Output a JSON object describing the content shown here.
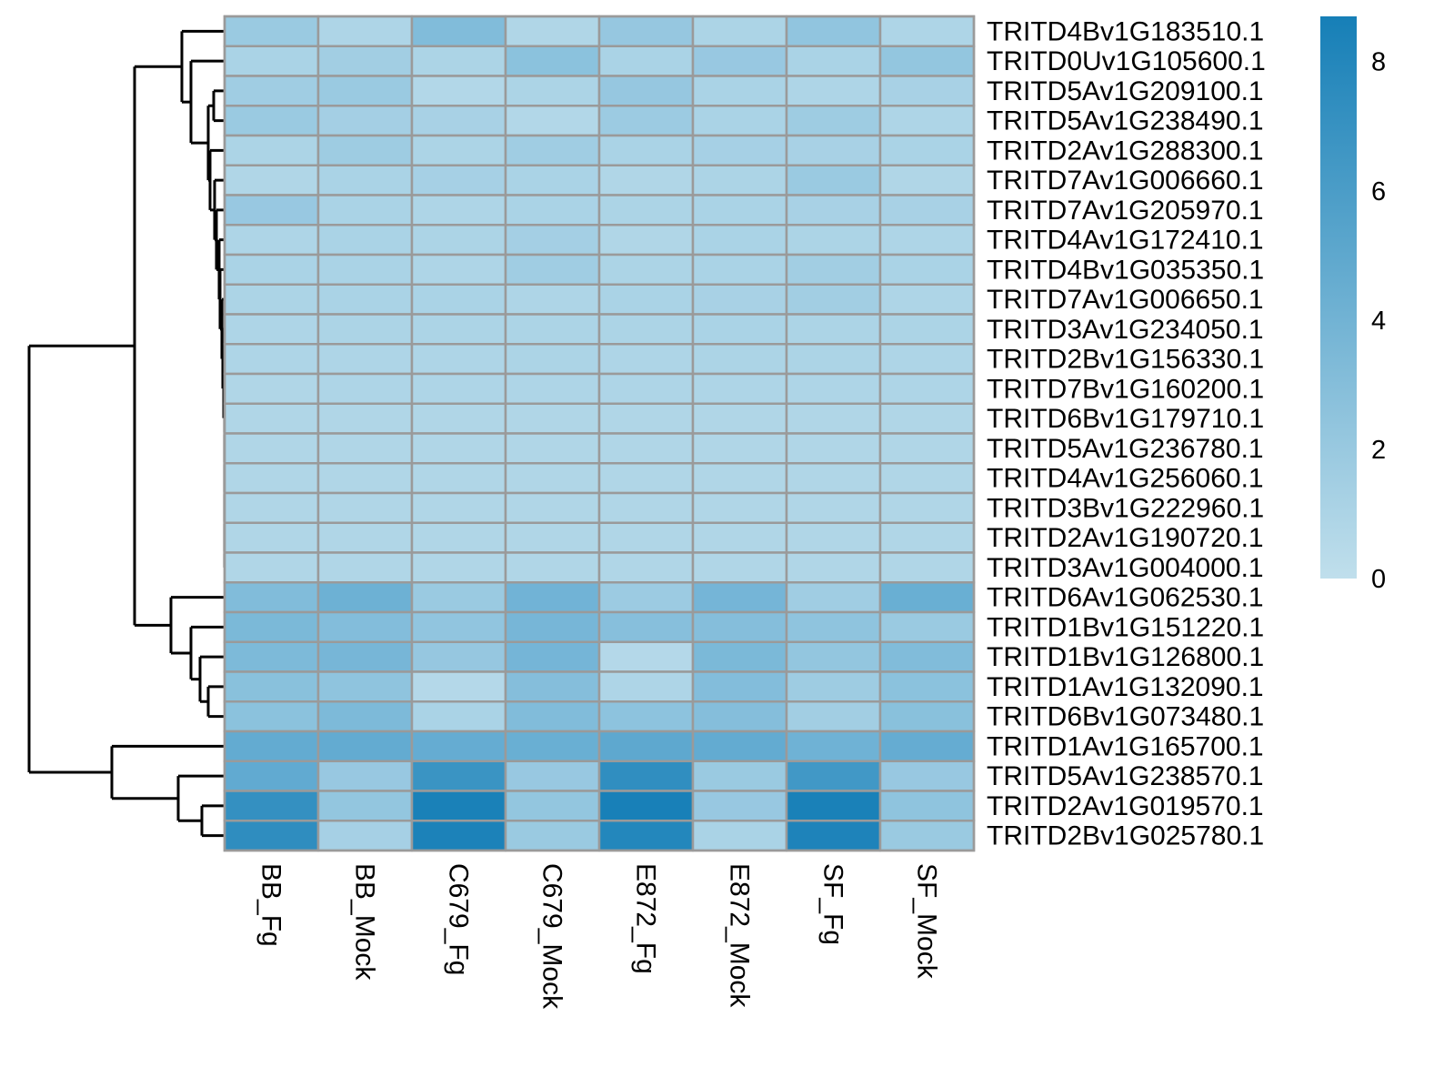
{
  "chart_data": {
    "type": "heatmap",
    "title": "",
    "xlabel": "",
    "ylabel": "",
    "columns": [
      "BB_Fg",
      "BB_Mock",
      "C679_Fg",
      "C679_Mock",
      "E872_Fg",
      "E872_Mock",
      "SF_Fg",
      "SF_Mock"
    ],
    "rows": [
      "TRITD4Bv1G183510.1",
      "TRITD0Uv1G105600.1",
      "TRITD5Av1G209100.1",
      "TRITD5Av1G238490.1",
      "TRITD2Av1G288300.1",
      "TRITD7Av1G006660.1",
      "TRITD7Av1G205970.1",
      "TRITD4Av1G172410.1",
      "TRITD4Bv1G035350.1",
      "TRITD7Av1G006650.1",
      "TRITD3Av1G234050.1",
      "TRITD2Bv1G156330.1",
      "TRITD7Bv1G160200.1",
      "TRITD6Bv1G179710.1",
      "TRITD5Av1G236780.1",
      "TRITD4Av1G256060.1",
      "TRITD3Bv1G222960.1",
      "TRITD2Av1G190720.1",
      "TRITD3Av1G004000.1",
      "TRITD6Av1G062530.1",
      "TRITD1Bv1G151220.1",
      "TRITD1Bv1G126800.1",
      "TRITD1Av1G132090.1",
      "TRITD6Bv1G073480.1",
      "TRITD1Av1G165700.1",
      "TRITD5Av1G238570.1",
      "TRITD2Av1G019570.1",
      "TRITD2Bv1G025780.1"
    ],
    "values": [
      [
        1.9,
        0.9,
        3.1,
        0.8,
        2.1,
        1.0,
        2.3,
        0.9
      ],
      [
        1.1,
        1.5,
        1.0,
        2.6,
        1.1,
        2.0,
        1.1,
        2.2
      ],
      [
        1.6,
        1.9,
        0.7,
        1.0,
        2.1,
        1.1,
        0.9,
        1.2
      ],
      [
        1.9,
        1.4,
        1.2,
        0.7,
        1.8,
        1.1,
        1.7,
        0.9
      ],
      [
        1.0,
        1.7,
        1.0,
        1.6,
        1.1,
        1.3,
        1.2,
        1.1
      ],
      [
        0.8,
        1.1,
        1.3,
        1.1,
        0.8,
        1.0,
        1.9,
        0.8
      ],
      [
        2.0,
        1.1,
        0.9,
        1.1,
        1.0,
        1.1,
        1.2,
        1.2
      ],
      [
        0.9,
        1.1,
        1.0,
        1.4,
        0.8,
        1.1,
        1.0,
        0.9
      ],
      [
        1.1,
        1.1,
        0.9,
        1.6,
        1.0,
        1.1,
        1.5,
        1.1
      ],
      [
        1.0,
        1.1,
        1.1,
        0.9,
        1.1,
        1.2,
        1.5,
        0.9
      ],
      [
        0.9,
        1.0,
        1.0,
        1.0,
        1.0,
        1.1,
        1.0,
        1.0
      ],
      [
        0.9,
        0.9,
        0.9,
        1.0,
        0.9,
        1.0,
        1.0,
        0.9
      ],
      [
        0.8,
        0.9,
        0.9,
        0.9,
        0.9,
        0.9,
        0.9,
        0.9
      ],
      [
        0.8,
        0.8,
        0.8,
        0.8,
        0.8,
        0.8,
        0.8,
        0.8
      ],
      [
        0.8,
        0.8,
        0.8,
        0.8,
        0.8,
        0.8,
        0.8,
        0.8
      ],
      [
        0.8,
        0.8,
        0.8,
        0.8,
        0.8,
        0.8,
        0.8,
        0.8
      ],
      [
        0.8,
        0.8,
        0.8,
        0.8,
        0.8,
        0.8,
        0.8,
        0.8
      ],
      [
        0.8,
        0.8,
        0.8,
        0.8,
        0.8,
        0.8,
        0.8,
        0.8
      ],
      [
        0.8,
        0.8,
        0.8,
        0.8,
        0.8,
        0.8,
        0.8,
        0.8
      ],
      [
        3.1,
        4.1,
        1.9,
        3.9,
        1.8,
        3.7,
        1.6,
        4.3
      ],
      [
        3.4,
        3.0,
        2.3,
        3.6,
        2.8,
        2.9,
        2.4,
        1.9
      ],
      [
        3.3,
        3.6,
        2.1,
        3.7,
        0.6,
        3.4,
        2.2,
        3.1
      ],
      [
        2.7,
        2.4,
        0.6,
        2.9,
        0.9,
        3.0,
        1.7,
        2.6
      ],
      [
        2.6,
        3.3,
        1.1,
        3.1,
        2.5,
        2.9,
        1.5,
        2.7
      ],
      [
        4.6,
        4.6,
        4.5,
        4.3,
        4.9,
        4.6,
        4.0,
        4.5
      ],
      [
        4.7,
        2.0,
        6.8,
        2.0,
        7.3,
        1.9,
        6.4,
        2.0
      ],
      [
        7.1,
        2.2,
        8.5,
        2.2,
        8.6,
        2.0,
        8.5,
        2.4
      ],
      [
        7.4,
        1.3,
        8.4,
        1.9,
        8.0,
        1.1,
        8.3,
        1.9
      ]
    ],
    "legend": {
      "min": 0,
      "max": 8.7,
      "ticks": [
        0,
        2,
        4,
        6,
        8
      ],
      "tick_labels": [
        "0",
        "2",
        "4",
        "6",
        "8"
      ],
      "color_low": "#c0dfec",
      "color_high": "#167fb7"
    },
    "grid": true,
    "legend_position": "right"
  }
}
